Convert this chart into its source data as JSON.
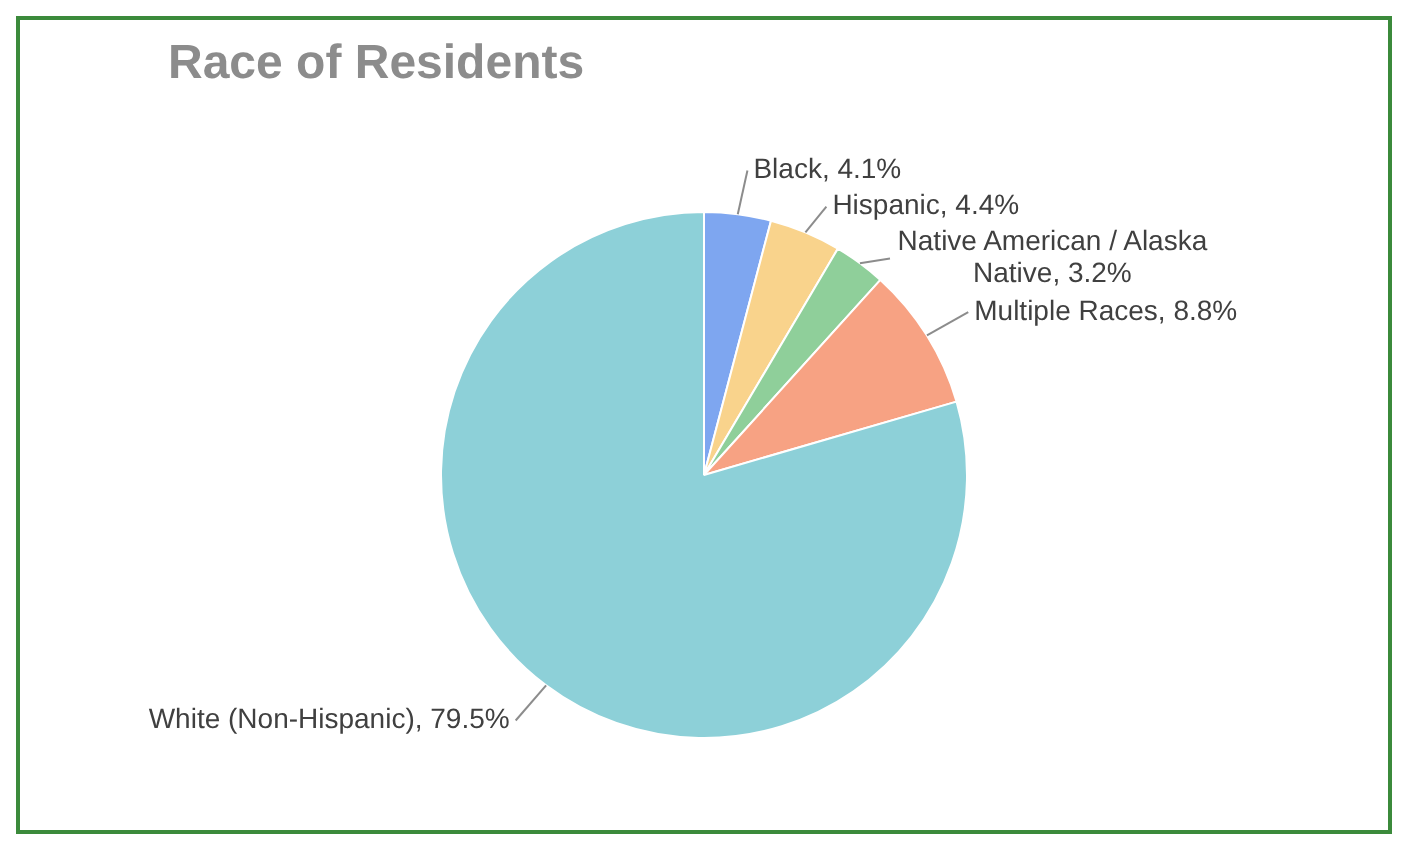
{
  "chart_data": {
    "type": "pie",
    "title": "Race of Residents",
    "categories": [
      "Black",
      "Hispanic",
      "Native American / Alaska Native",
      "Multiple Races",
      "White (Non-Hispanic)"
    ],
    "values": [
      4.1,
      4.4,
      3.2,
      8.8,
      79.5
    ],
    "colors": [
      "#7ea6f0",
      "#f9d38c",
      "#8fcf9a",
      "#f7a283",
      "#8dd0d8"
    ],
    "value_labels": [
      "4.1%",
      "4.4%",
      "3.2%",
      "8.8%",
      "79.5%"
    ],
    "legend": false
  }
}
